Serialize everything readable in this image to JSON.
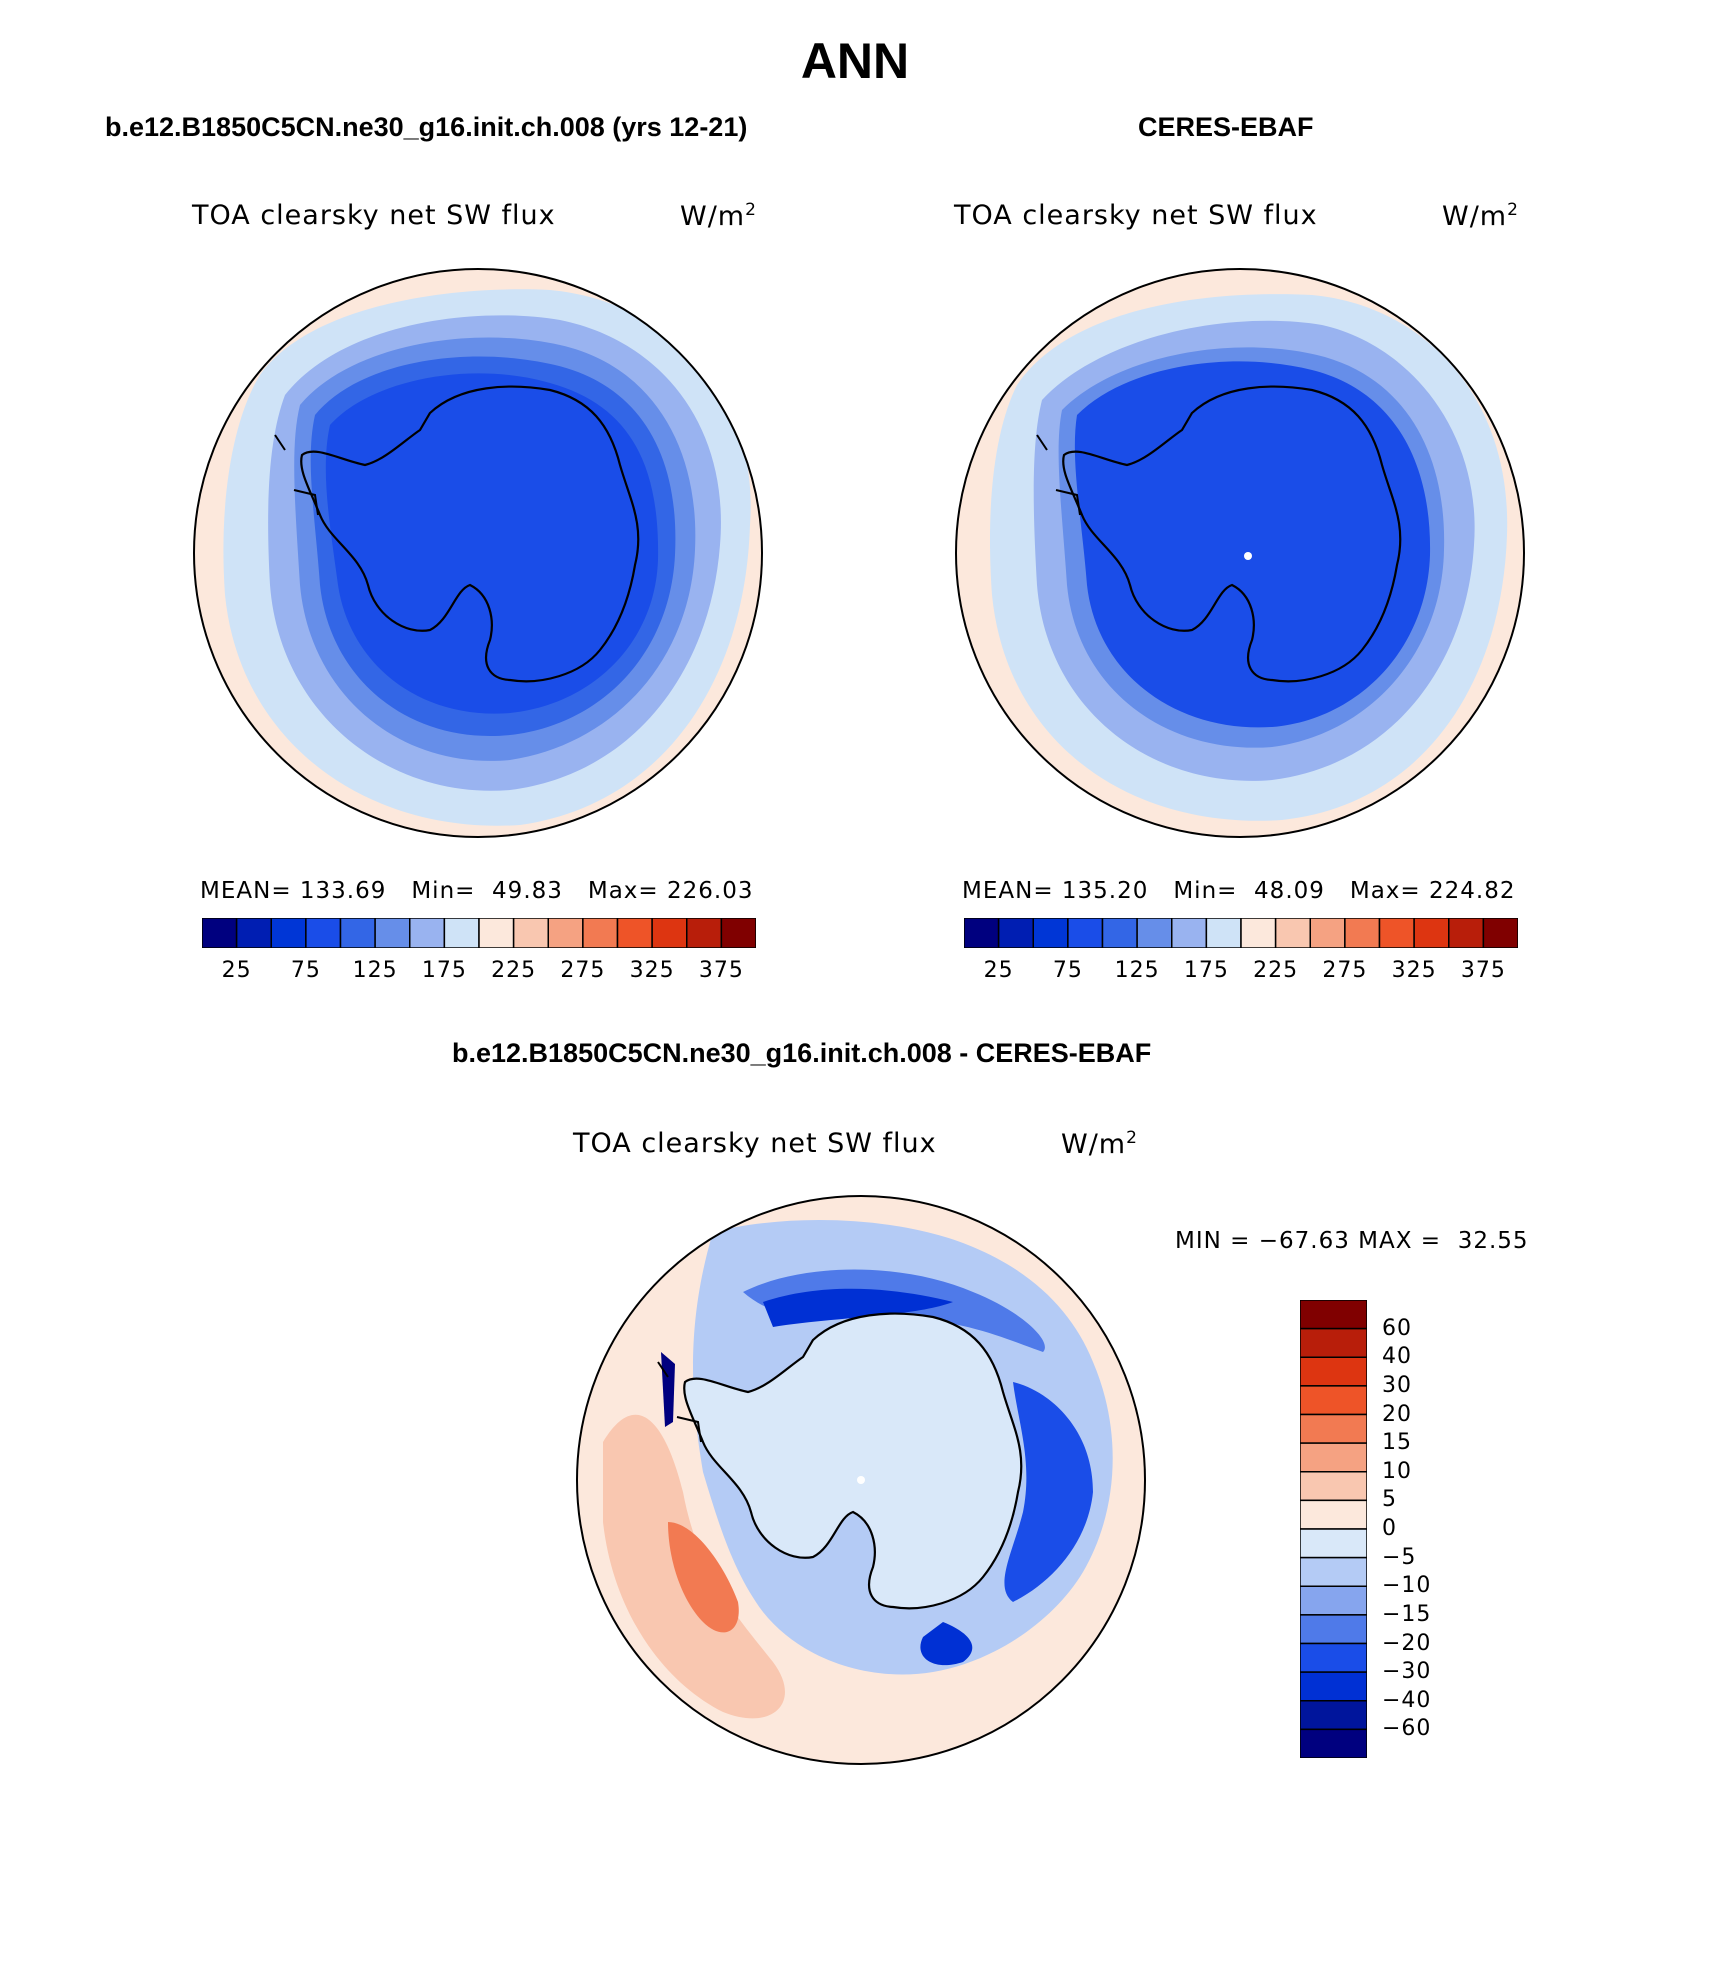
{
  "figure": {
    "title": "ANN",
    "colors": {
      "abs_scale": [
        "#00007f",
        "#001eb2",
        "#0036d6",
        "#1a4de8",
        "#3366e6",
        "#668ee9",
        "#99b3f0",
        "#cfe3f7",
        "#fce8dc",
        "#f9c7b0",
        "#f5a282",
        "#f27a52",
        "#ee5428",
        "#dd3511",
        "#b81e0a",
        "#800000"
      ],
      "diff_scale": [
        "#00007f",
        "#00159c",
        "#0030d4",
        "#1a4de8",
        "#4f7ae9",
        "#86a5ee",
        "#b4cbf5",
        "#d9e8f9",
        "#fce8dc",
        "#f9c7b0",
        "#f5a282",
        "#f27a52",
        "#ee5428",
        "#dd3511",
        "#b81e0a",
        "#800000"
      ]
    }
  },
  "panels": [
    {
      "case": "b.e12.B1850C5CN.ne30_g16.init.ch.008 (yrs 12-21)",
      "variable": "TOA clearsky net SW flux",
      "units": "W/m",
      "units_exp": "2",
      "stats": {
        "mean_label": "MEAN=",
        "mean": "133.69",
        "min_label": "Min=",
        "min": "49.83",
        "max_label": "Max=",
        "max": "226.03"
      },
      "colorbar_labels": [
        "25",
        "75",
        "125",
        "175",
        "225",
        "275",
        "325",
        "375"
      ]
    },
    {
      "case": "CERES-EBAF",
      "variable": "TOA clearsky net SW flux",
      "units": "W/m",
      "units_exp": "2",
      "stats": {
        "mean_label": "MEAN=",
        "mean": "135.20",
        "min_label": "Min=",
        "min": "48.09",
        "max_label": "Max=",
        "max": "224.82"
      },
      "colorbar_labels": [
        "25",
        "75",
        "125",
        "175",
        "225",
        "275",
        "325",
        "375"
      ]
    }
  ],
  "difference": {
    "case": "b.e12.B1850C5CN.ne30_g16.init.ch.008 - CERES-EBAF",
    "variable": "TOA clearsky net SW flux",
    "units": "W/m",
    "units_exp": "2",
    "minmax": "MIN = −67.63 MAX =  32.55",
    "colorbar_labels": [
      "60",
      "40",
      "30",
      "20",
      "15",
      "10",
      "5",
      "0",
      "−5",
      "−10",
      "−15",
      "−20",
      "−30",
      "−40",
      "−60"
    ]
  }
}
